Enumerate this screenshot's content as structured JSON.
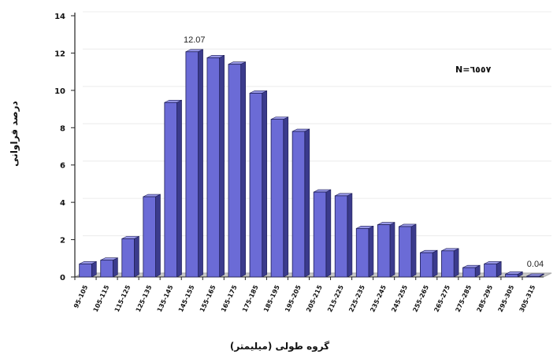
{
  "chart_data": {
    "type": "bar",
    "categories": [
      "95-105",
      "105-115",
      "115-125",
      "125-135",
      "135-145",
      "145-155",
      "155-165",
      "165-175",
      "175-185",
      "185-195",
      "195-205",
      "205-215",
      "215-225",
      "225-235",
      "235-245",
      "245-255",
      "255-265",
      "265-275",
      "275-285",
      "285-295",
      "295-305",
      "305-315"
    ],
    "values": [
      0.7,
      0.9,
      2.05,
      4.3,
      9.35,
      12.07,
      11.75,
      11.4,
      9.85,
      8.45,
      7.8,
      4.55,
      4.35,
      2.6,
      2.8,
      2.7,
      1.3,
      1.4,
      0.5,
      0.7,
      0.15,
      0.04
    ],
    "ylim": [
      0,
      14
    ],
    "yticks": [
      0,
      2,
      4,
      6,
      8,
      10,
      12,
      14
    ],
    "xlabel": "گروه طولی (میلیمتر)",
    "ylabel": "درصد فراوانی",
    "data_labels": [
      {
        "category": "145-155",
        "text": "12.07"
      },
      {
        "category": "305-315",
        "text": "0.04"
      }
    ],
    "annotation": "N=٦٥٥٧",
    "grid": true,
    "bar_color": "#6b6bd6",
    "bar_side_color": "#3b3b8c",
    "bar_top_color": "#9a9ae8",
    "floor_color": "#c8c8c8"
  }
}
